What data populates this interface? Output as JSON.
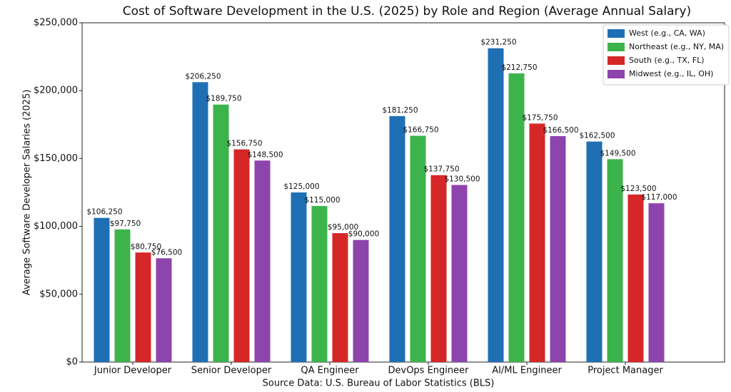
{
  "chart_data": {
    "type": "bar",
    "title": "Cost of Software Development in the U.S. (2025) by Role and Region (Average Annual Salary)",
    "x_label": "Source Data: U.S. Bureau of Labor Statistics (BLS)",
    "y_label": "Average Software Developer Salaries (2025)",
    "categories": [
      "Junior Developer",
      "Senior Developer",
      "QA Engineer",
      "DevOps Engineer",
      "AI/ML Engineer",
      "Project Manager"
    ],
    "series": [
      {
        "name": "West (e.g., CA, WA)",
        "color": "#1f6fb5",
        "values": [
          106250,
          206250,
          125000,
          181250,
          231250,
          162500
        ],
        "value_labels": [
          "$106,250",
          "$206,250",
          "$125,000",
          "$181,250",
          "$231,250",
          "$162,500"
        ]
      },
      {
        "name": "Northeast (e.g., NY, MA)",
        "color": "#3cb44b",
        "values": [
          97750,
          189750,
          115000,
          166750,
          212750,
          149500
        ],
        "value_labels": [
          "$97,750",
          "$189,750",
          "$115,000",
          "$166,750",
          "$212,750",
          "$149,500"
        ]
      },
      {
        "name": "South (e.g., TX, FL)",
        "color": "#d62728",
        "values": [
          80750,
          156750,
          95000,
          137750,
          175750,
          123500
        ],
        "value_labels": [
          "$80,750",
          "$156,750",
          "$95,000",
          "$137,750",
          "$175,750",
          "$123,500"
        ]
      },
      {
        "name": "Midwest (e.g., IL, OH)",
        "color": "#8e44ad",
        "values": [
          76500,
          148500,
          90000,
          130500,
          166500,
          117000
        ],
        "value_labels": [
          "$76,500",
          "$148,500",
          "$90,000",
          "$130,500",
          "$166,500",
          "$117,000"
        ]
      }
    ],
    "ylim": [
      0,
      250000
    ],
    "yticks": [
      {
        "value": 0,
        "label": "$0"
      },
      {
        "value": 50000,
        "label": "$50,000"
      },
      {
        "value": 100000,
        "label": "$100,000"
      },
      {
        "value": 150000,
        "label": "$150,000"
      },
      {
        "value": 200000,
        "label": "$200,000"
      },
      {
        "value": 250000,
        "label": "$250,000"
      }
    ],
    "grid": false,
    "legend": "upper right"
  }
}
